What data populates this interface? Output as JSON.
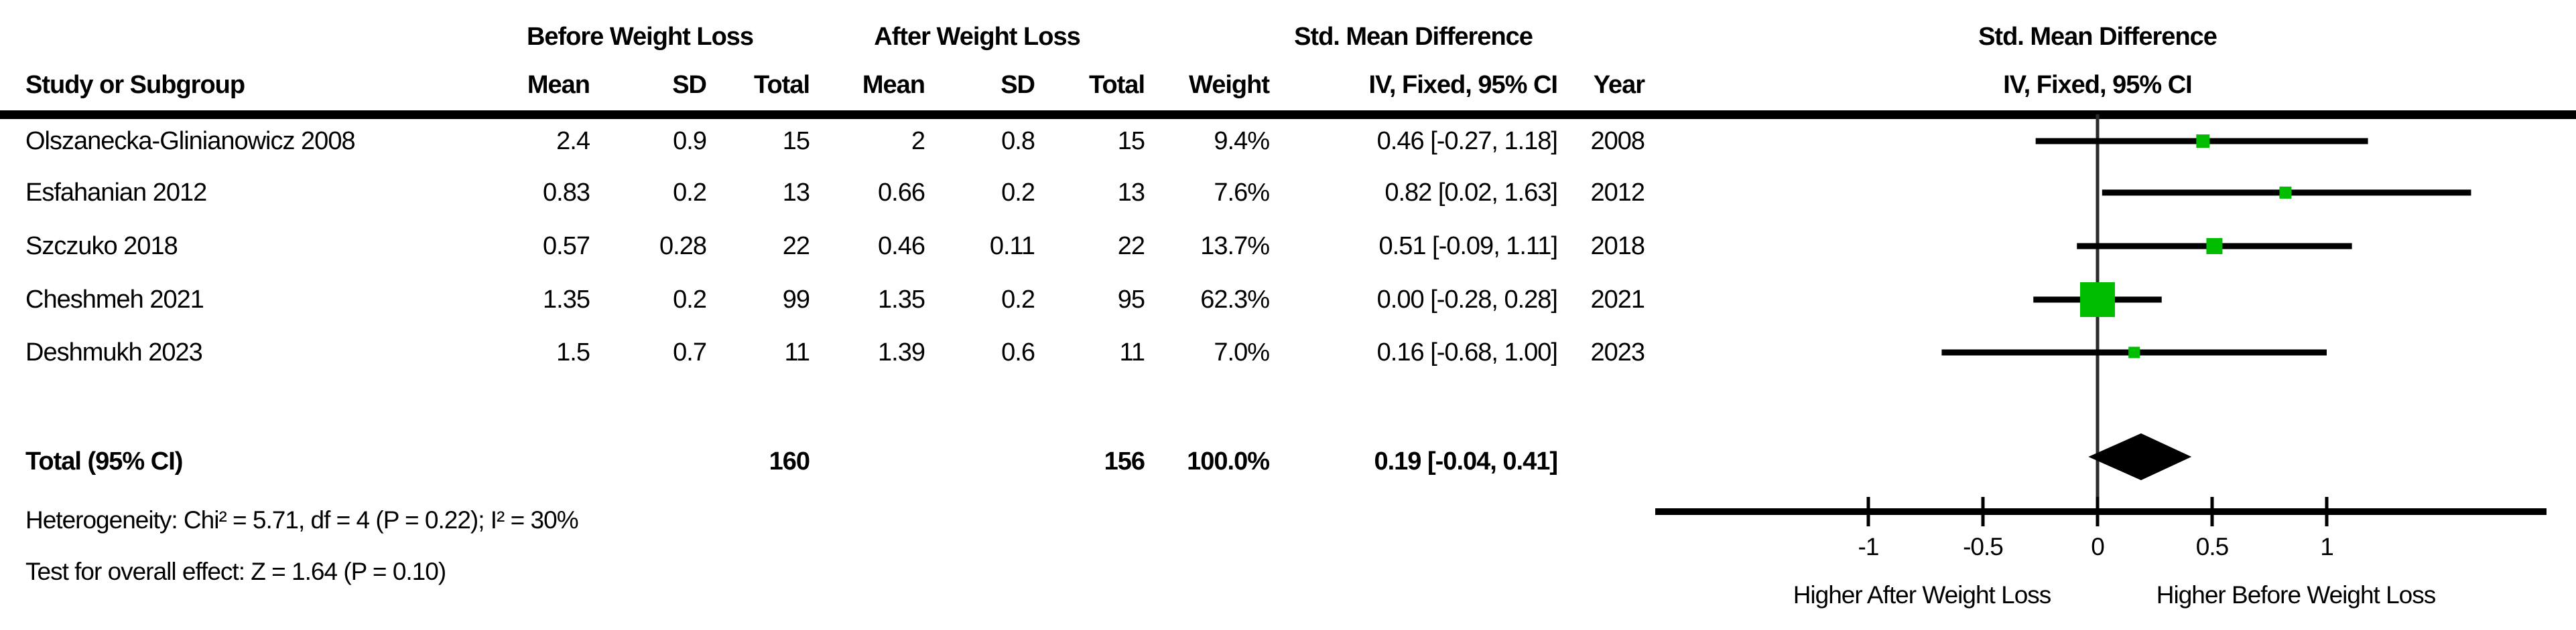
{
  "colors": {
    "marker_green": "#00bd00",
    "line_black": "#000000",
    "zero_line": "#2b2b2b"
  },
  "table": {
    "group_headers": {
      "before": "Before Weight Loss",
      "after": "After Weight Loss",
      "smd": "Std. Mean Difference",
      "plot": "Std. Mean Difference"
    },
    "column_headers": {
      "study": "Study or Subgroup",
      "mean1": "Mean",
      "sd1": "SD",
      "total1": "Total",
      "mean2": "Mean",
      "sd2": "SD",
      "total2": "Total",
      "weight": "Weight",
      "ci": "IV, Fixed, 95% CI",
      "year": "Year",
      "plot_ci": "IV, Fixed, 95% CI"
    },
    "rows": [
      {
        "study": "Olszanecka-Glinianowicz 2008",
        "mean1": "2.4",
        "sd1": "0.9",
        "total1": "15",
        "mean2": "2",
        "sd2": "0.8",
        "total2": "15",
        "weight": "9.4%",
        "ci": "0.46 [-0.27, 1.18]",
        "year": "2008"
      },
      {
        "study": "Esfahanian 2012",
        "mean1": "0.83",
        "sd1": "0.2",
        "total1": "13",
        "mean2": "0.66",
        "sd2": "0.2",
        "total2": "13",
        "weight": "7.6%",
        "ci": "0.82 [0.02, 1.63]",
        "year": "2012"
      },
      {
        "study": "Szczuko 2018",
        "mean1": "0.57",
        "sd1": "0.28",
        "total1": "22",
        "mean2": "0.46",
        "sd2": "0.11",
        "total2": "22",
        "weight": "13.7%",
        "ci": "0.51 [-0.09, 1.11]",
        "year": "2018"
      },
      {
        "study": "Cheshmeh 2021",
        "mean1": "1.35",
        "sd1": "0.2",
        "total1": "99",
        "mean2": "1.35",
        "sd2": "0.2",
        "total2": "95",
        "weight": "62.3%",
        "ci": "0.00 [-0.28, 0.28]",
        "year": "2021"
      },
      {
        "study": "Deshmukh 2023",
        "mean1": "1.5",
        "sd1": "0.7",
        "total1": "11",
        "mean2": "1.39",
        "sd2": "0.6",
        "total2": "11",
        "weight": "7.0%",
        "ci": "0.16 [-0.68, 1.00]",
        "year": "2023"
      }
    ],
    "total_row": {
      "label": "Total (95% CI)",
      "total1": "160",
      "total2": "156",
      "weight": "100.0%",
      "ci": "0.19 [-0.04, 0.41]"
    },
    "heterogeneity": "Heterogeneity: Chi² = 5.71, df = 4 (P = 0.22); I² = 30%",
    "overall_effect": "Test for overall effect: Z = 1.64 (P = 0.10)"
  },
  "chart_data": {
    "type": "forest",
    "title": "Std. Mean Difference",
    "subtitle": "IV, Fixed, 95% CI",
    "effect_measure": "Std. Mean Difference (IV, Fixed, 95% CI)",
    "studies": [
      {
        "name": "Olszanecka-Glinianowicz 2008",
        "year": 2008,
        "est": 0.46,
        "ci_low": -0.27,
        "ci_high": 1.18,
        "weight_pct": 9.4
      },
      {
        "name": "Esfahanian 2012",
        "year": 2012,
        "est": 0.82,
        "ci_low": 0.02,
        "ci_high": 1.63,
        "weight_pct": 7.6
      },
      {
        "name": "Szczuko 2018",
        "year": 2018,
        "est": 0.51,
        "ci_low": -0.09,
        "ci_high": 1.11,
        "weight_pct": 13.7
      },
      {
        "name": "Cheshmeh 2021",
        "year": 2021,
        "est": 0.0,
        "ci_low": -0.28,
        "ci_high": 0.28,
        "weight_pct": 62.3
      },
      {
        "name": "Deshmukh 2023",
        "year": 2023,
        "est": 0.16,
        "ci_low": -0.68,
        "ci_high": 1.0,
        "weight_pct": 7.0
      }
    ],
    "overall": {
      "label": "Total (95% CI)",
      "est": 0.19,
      "ci_low": -0.04,
      "ci_high": 0.41,
      "weight_pct": 100.0,
      "total_before": 160,
      "total_after": 156
    },
    "heterogeneity": {
      "chi2": 5.71,
      "df": 4,
      "p": 0.22,
      "i2_pct": 30
    },
    "overall_effect_test": {
      "z": 1.64,
      "p": 0.1
    },
    "x_axis": {
      "ticks": [
        -1,
        -0.5,
        0,
        0.5,
        1
      ],
      "tick_labels": [
        "-1",
        "-0.5",
        "0",
        "0.5",
        "1"
      ],
      "range_shown": [
        -1.9,
        2.0
      ],
      "label_left": "Higher After Weight Loss",
      "label_right": "Higher Before Weight Loss",
      "grid": false
    }
  }
}
